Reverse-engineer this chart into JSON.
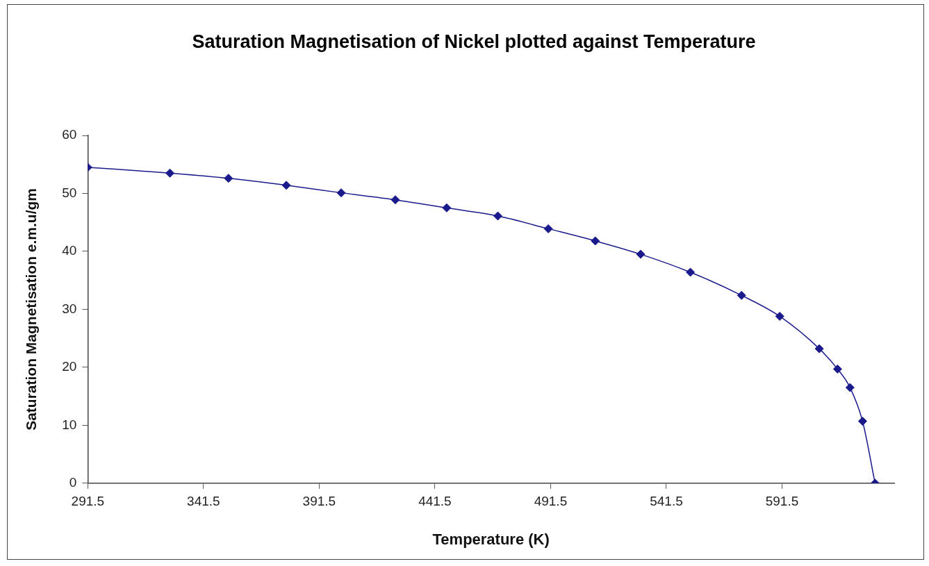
{
  "chart_data": {
    "type": "line",
    "title": "Saturation Magnetisation of Nickel plotted against Temperature",
    "xlabel": "Temperature (K)",
    "ylabel": "Saturation Magnetisation e.m.u/gm",
    "x": [
      291.5,
      327.0,
      352.3,
      377.3,
      401.0,
      424.4,
      446.6,
      468.7,
      490.5,
      510.8,
      530.4,
      551.9,
      574.0,
      590.5,
      607.6,
      615.5,
      620.9,
      626.3,
      631.7
    ],
    "series": [
      {
        "color": "#1a1a8c",
        "values": [
          54.5,
          53.5,
          52.6,
          51.4,
          50.1,
          48.9,
          47.5,
          46.1,
          43.9,
          41.8,
          39.5,
          36.4,
          32.4,
          28.8,
          23.2,
          19.7,
          16.5,
          10.7,
          0
        ]
      }
    ],
    "xlim": [
      291.5,
      640
    ],
    "xticks": [
      291.5,
      341.5,
      391.5,
      441.5,
      491.5,
      541.5,
      591.5
    ],
    "ylim": [
      0,
      60
    ],
    "yticks": [
      0,
      10,
      20,
      30,
      40,
      50,
      60
    ],
    "grid": false,
    "legend": false,
    "marker": "diamond",
    "line_style": "solid"
  }
}
